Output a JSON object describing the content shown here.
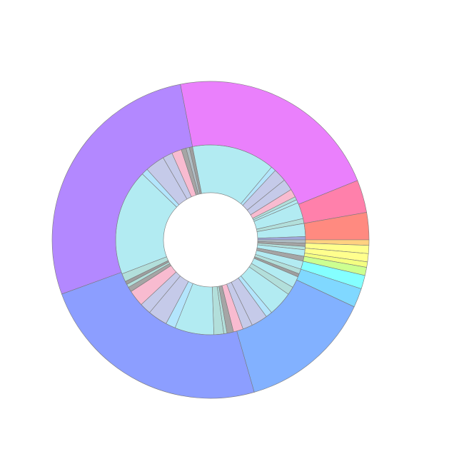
{
  "chart_data": {
    "type": "sunburst",
    "rings": [
      {
        "values": [
          51,
          3,
          8,
          7,
          5,
          2,
          2,
          10,
          3,
          8,
          2,
          2,
          2,
          2,
          4,
          3,
          5,
          3,
          2,
          7,
          5,
          15,
          4,
          10,
          6,
          6,
          4,
          2,
          6,
          24,
          6,
          12,
          7,
          10,
          3,
          2,
          2,
          5,
          65,
          4,
          12,
          6,
          6,
          3,
          2,
          2
        ],
        "colors": [
          "#b2ebf2",
          "#b3e5fc",
          "#c5cae9",
          "#c5cae9",
          "#f8bbd0",
          "#b2dfdb",
          "#b2ebf2",
          "#b2ebf2",
          "#b2dfdb",
          "#b2ebf2",
          "#9fa8da",
          "#b0bec5",
          "#a5a5a5",
          "#b2dfdb",
          "#b2ebf2",
          "#a5a5a5",
          "#b2ebf2",
          "#b2dfdb",
          "#9e9e9e",
          "#b2ebf2",
          "#b2dfdb",
          "#b2ebf2",
          "#b3e5fc",
          "#c5cae9",
          "#c5cae9",
          "#f8bbd0",
          "#a5a5a5",
          "#b2dfdb",
          "#b2dfdb",
          "#b2ebf2",
          "#b3e5fc",
          "#c5cae9",
          "#c5cae9",
          "#f8bbd0",
          "#a5a5a5",
          "#b2dfdb",
          "#9e9e9e",
          "#b2dfdb",
          "#b2ebf2",
          "#b3e5fc",
          "#c5cae9",
          "#c5cae9",
          "#f8bbd0",
          "#a5a5a5",
          "#b0bec5",
          "#9e9e9e"
        ]
      },
      {
        "values": [
          79,
          12,
          10,
          2,
          3,
          3,
          2,
          3,
          5,
          7,
          49,
          86,
          99
        ],
        "colors": [
          "#ea80fc",
          "#ff80ab",
          "#ff8a80",
          "#ffd180",
          "#ffff8d",
          "#ffff8d",
          "#f4ff81",
          "#ccff90",
          "#84ffff",
          "#80d8ff",
          "#82b1ff",
          "#8c9eff",
          "#b388ff"
        ]
      }
    ]
  }
}
